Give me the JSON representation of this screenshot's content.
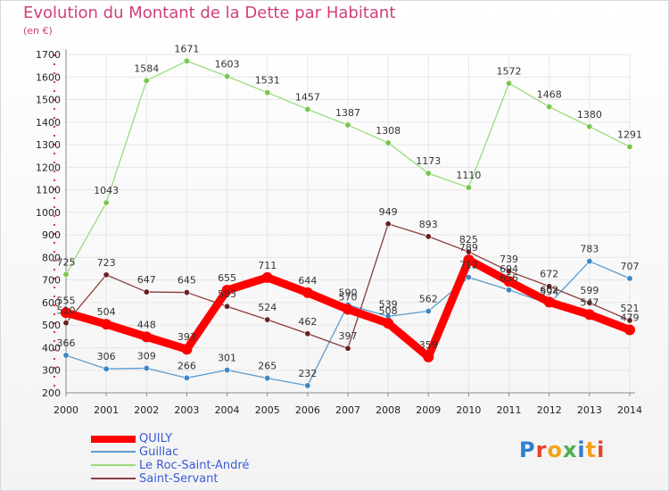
{
  "page": {
    "title": "Evolution du Montant de la Dette par Habitant",
    "unit": "(en €)",
    "logo": "Proxiti",
    "logo_colors": [
      "#2f7fd0",
      "#e7432b",
      "#f3a21b",
      "#4caf50",
      "#2f7fd0",
      "#f3a21b",
      "#e7432b"
    ]
  },
  "chart_data": {
    "type": "line",
    "title": "Evolution du Montant de la Dette par Habitant",
    "xlabel": "",
    "ylabel": "(en €)",
    "ylim": [
      200,
      1700
    ],
    "y_ticks": [
      200,
      300,
      400,
      500,
      600,
      700,
      800,
      900,
      1000,
      1100,
      1200,
      1300,
      1400,
      1500,
      1600,
      1700
    ],
    "x": [
      "2000",
      "2001",
      "2002",
      "2003",
      "2004",
      "2005",
      "2006",
      "2007",
      "2008",
      "2009",
      "2010",
      "2011",
      "2012",
      "2013",
      "2014"
    ],
    "grid": true,
    "legend_position": "bottom-left",
    "series": [
      {
        "name": "Guillac",
        "color": "#5b9bd0",
        "point_color": "#3c86c6",
        "values": [
          366,
          306,
          309,
          266,
          301,
          265,
          232,
          590,
          539,
          562,
          712,
          656,
          594,
          783,
          707
        ],
        "labels": [
          "366",
          "306",
          "309",
          "266",
          "301",
          "265",
          "232",
          "590",
          "539",
          "562",
          "712",
          "656",
          "594",
          "783",
          "707"
        ]
      },
      {
        "name": "Le Roc-Saint-André",
        "color": "#9bdb7a",
        "point_color": "#77c64d",
        "values": [
          725,
          1043,
          1584,
          1671,
          1603,
          1531,
          1457,
          1387,
          1308,
          1173,
          1110,
          1572,
          1468,
          1380,
          1291
        ],
        "labels": [
          "725",
          "1043",
          "1584",
          "1671",
          "1603",
          "1531",
          "1457",
          "1387",
          "1308",
          "1173",
          "1110",
          "1572",
          "1468",
          "1380",
          "1291"
        ]
      },
      {
        "name": "Saint-Servant",
        "color": "#8b3b3b",
        "point_color": "#6a1f1f",
        "values": [
          510,
          723,
          647,
          645,
          583,
          524,
          462,
          397,
          949,
          893,
          825,
          739,
          672,
          599,
          521
        ],
        "labels": [
          "510",
          "723",
          "647",
          "645",
          "583",
          "524",
          "462",
          "397",
          "949",
          "893",
          "825",
          "739",
          "672",
          "599",
          "521"
        ]
      },
      {
        "name": "QUILY",
        "color": "#ff0000",
        "point_color": "#ff0000",
        "values": [
          555,
          504,
          448,
          393,
          655,
          711,
          644,
          570,
          508,
          359,
          789,
          694,
          602,
          547,
          479
        ],
        "labels": [
          "555",
          "504",
          "448",
          "393",
          "655",
          "711",
          "644",
          "570",
          "508",
          "359",
          "789",
          "694",
          "602",
          "547",
          "479"
        ]
      }
    ]
  },
  "legend": {
    "items": [
      {
        "name": "QUILY",
        "color": "#ff0000"
      },
      {
        "name": "Guillac",
        "color": "#5b9bd0"
      },
      {
        "name": "Le Roc-Saint-André",
        "color": "#9bdb7a"
      },
      {
        "name": "Saint-Servant",
        "color": "#8b3b3b"
      }
    ]
  }
}
